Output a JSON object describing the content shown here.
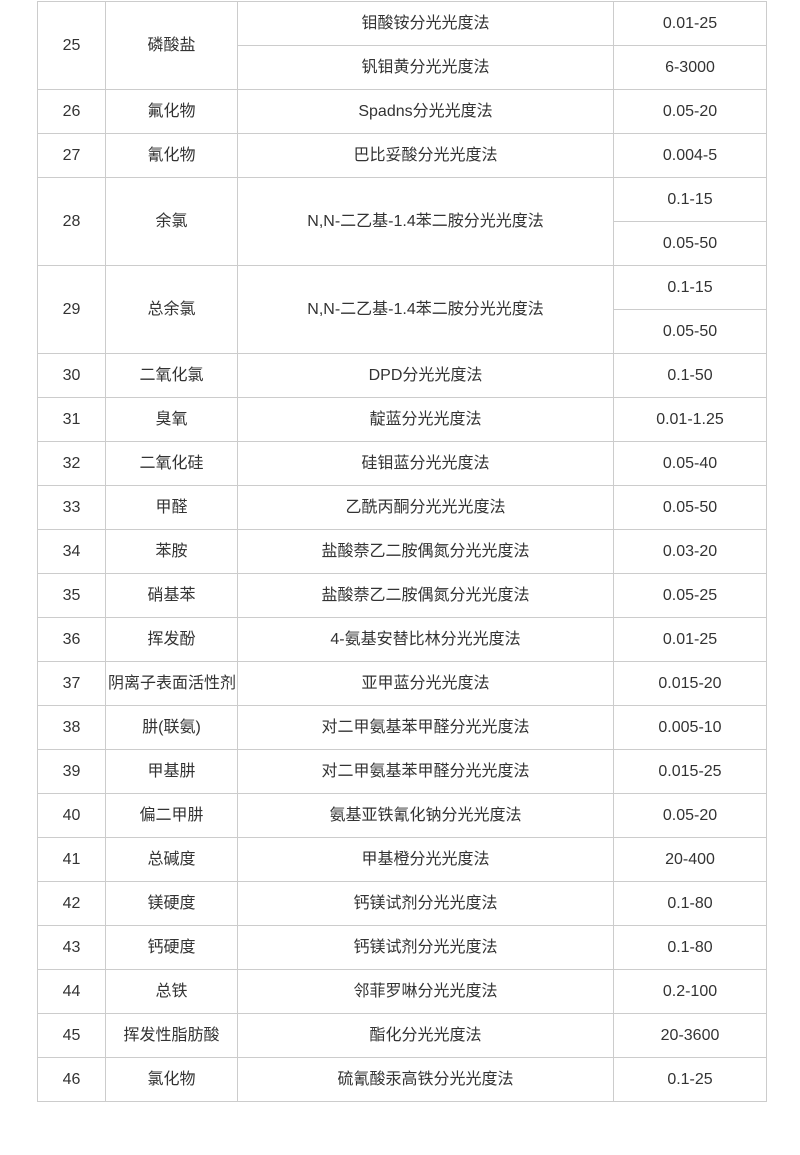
{
  "page": {
    "background_color": "#ffffff"
  },
  "table": {
    "description": "spectrophotometric-method-range-table",
    "border_color": "#cccccc",
    "text_color": "#333333",
    "rows": [
      {
        "no": "25",
        "name": "磷酸盐",
        "methods": [
          "钼酸铵分光光度法",
          "钒钼黄分光光度法"
        ],
        "ranges": [
          "0.01-25",
          "6-3000"
        ]
      },
      {
        "no": "26",
        "name": "氟化物",
        "methods": [
          "Spadns分光光度法"
        ],
        "ranges": [
          "0.05-20"
        ]
      },
      {
        "no": "27",
        "name": "氰化物",
        "methods": [
          "巴比妥酸分光光度法"
        ],
        "ranges": [
          "0.004-5"
        ]
      },
      {
        "no": "28",
        "name": "余氯",
        "methods": [
          "N,N-二乙基-1.4苯二胺分光光度法"
        ],
        "ranges": [
          "0.1-15",
          "0.05-50"
        ]
      },
      {
        "no": "29",
        "name": "总余氯",
        "methods": [
          "N,N-二乙基-1.4苯二胺分光光度法"
        ],
        "ranges": [
          "0.1-15",
          "0.05-50"
        ]
      },
      {
        "no": "30",
        "name": "二氧化氯",
        "methods": [
          "DPD分光光度法"
        ],
        "ranges": [
          "0.1-50"
        ]
      },
      {
        "no": "31",
        "name": "臭氧",
        "methods": [
          "靛蓝分光光度法"
        ],
        "ranges": [
          "0.01-1.25"
        ]
      },
      {
        "no": "32",
        "name": "二氧化硅",
        "methods": [
          "硅钼蓝分光光度法"
        ],
        "ranges": [
          "0.05-40"
        ]
      },
      {
        "no": "33",
        "name": "甲醛",
        "methods": [
          "乙酰丙酮分光光光度法"
        ],
        "ranges": [
          "0.05-50"
        ]
      },
      {
        "no": "34",
        "name": "苯胺",
        "methods": [
          "盐酸萘乙二胺偶氮分光光度法"
        ],
        "ranges": [
          "0.03-20"
        ]
      },
      {
        "no": "35",
        "name": "硝基苯",
        "methods": [
          "盐酸萘乙二胺偶氮分光光度法"
        ],
        "ranges": [
          "0.05-25"
        ]
      },
      {
        "no": "36",
        "name": "挥发酚",
        "methods": [
          "4-氨基安替比林分光光度法"
        ],
        "ranges": [
          "0.01-25"
        ]
      },
      {
        "no": "37",
        "name": "阴离子表面活性剂",
        "methods": [
          "亚甲蓝分光光度法"
        ],
        "ranges": [
          "0.015-20"
        ]
      },
      {
        "no": "38",
        "name": "肼(联氨)",
        "methods": [
          "对二甲氨基苯甲醛分光光度法"
        ],
        "ranges": [
          "0.005-10"
        ]
      },
      {
        "no": "39",
        "name": "甲基肼",
        "methods": [
          "对二甲氨基苯甲醛分光光度法"
        ],
        "ranges": [
          "0.015-25"
        ]
      },
      {
        "no": "40",
        "name": "偏二甲肼",
        "methods": [
          "氨基亚铁氰化钠分光光度法"
        ],
        "ranges": [
          "0.05-20"
        ]
      },
      {
        "no": "41",
        "name": "总碱度",
        "methods": [
          "甲基橙分光光度法"
        ],
        "ranges": [
          "20-400"
        ]
      },
      {
        "no": "42",
        "name": "镁硬度",
        "methods": [
          "钙镁试剂分光光度法"
        ],
        "ranges": [
          "0.1-80"
        ]
      },
      {
        "no": "43",
        "name": "钙硬度",
        "methods": [
          "钙镁试剂分光光度法"
        ],
        "ranges": [
          "0.1-80"
        ]
      },
      {
        "no": "44",
        "name": "总铁",
        "methods": [
          "邻菲罗啉分光光度法"
        ],
        "ranges": [
          "0.2-100"
        ]
      },
      {
        "no": "45",
        "name": "挥发性脂肪酸",
        "methods": [
          "酯化分光光度法"
        ],
        "ranges": [
          "20-3600"
        ]
      },
      {
        "no": "46",
        "name": "氯化物",
        "methods": [
          "硫氰酸汞高铁分光光度法"
        ],
        "ranges": [
          "0.1-25"
        ]
      }
    ]
  }
}
